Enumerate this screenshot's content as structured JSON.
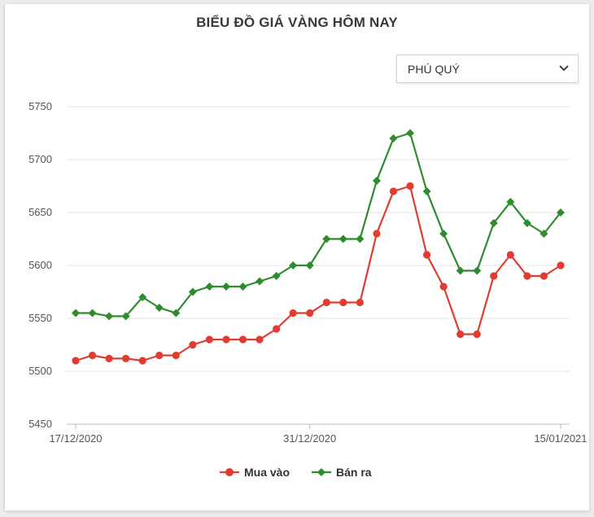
{
  "title": "BIỂU ĐỒ GIÁ VÀNG HÔM NAY",
  "selector": {
    "value": "PHÚ QUÝ",
    "icon": "chevron-down-icon"
  },
  "chart_data": {
    "type": "line",
    "title": "BIỂU ĐỒ GIÁ VÀNG HÔM NAY",
    "xlabel": "",
    "ylabel": "",
    "ylim": [
      5450,
      5750
    ],
    "yticks": [
      5450,
      5500,
      5550,
      5600,
      5650,
      5700,
      5750
    ],
    "xtick_labels": [
      "17/12/2020",
      "31/12/2020",
      "15/01/2021"
    ],
    "grid": true,
    "legend_position": "bottom",
    "series": [
      {
        "name": "Mua vào",
        "color": "#e03c31",
        "marker": "circle",
        "values": [
          5510,
          5515,
          5512,
          5512,
          5510,
          5515,
          5515,
          5525,
          5530,
          5530,
          5530,
          5530,
          5540,
          5555,
          5555,
          5565,
          5565,
          5565,
          5630,
          5670,
          5675,
          5610,
          5580,
          5535,
          5535,
          5590,
          5610,
          5590,
          5590,
          5600
        ]
      },
      {
        "name": "Bán ra",
        "color": "#2e8b2e",
        "marker": "diamond",
        "values": [
          5555,
          5555,
          5552,
          5552,
          5570,
          5560,
          5555,
          5575,
          5580,
          5580,
          5580,
          5585,
          5590,
          5600,
          5600,
          5625,
          5625,
          5625,
          5680,
          5720,
          5725,
          5670,
          5630,
          5595,
          5595,
          5640,
          5660,
          5640,
          5630,
          5650
        ]
      }
    ]
  }
}
